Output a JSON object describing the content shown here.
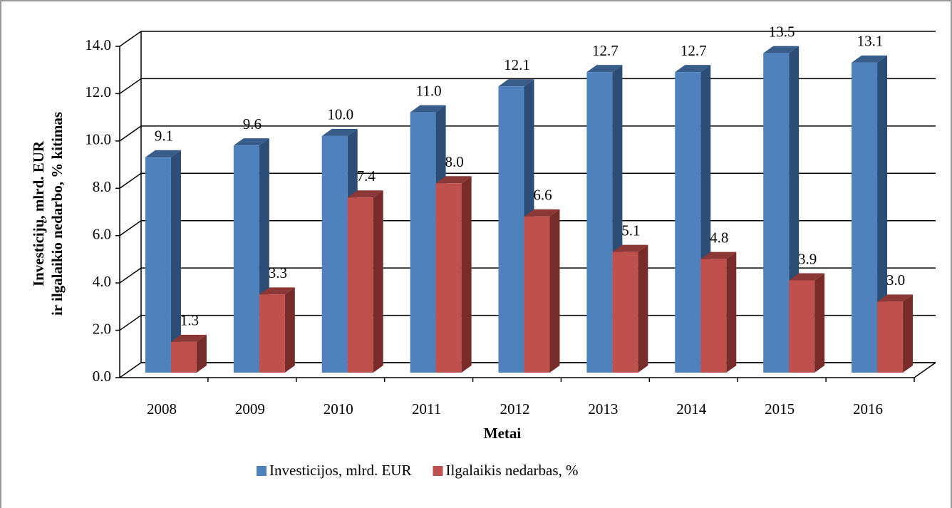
{
  "chart_data": {
    "type": "bar3d",
    "y_label": [
      "Investicijų, mlrd. EUR",
      "ir ilgalaikio nedarbo,  % kitimas"
    ],
    "x_label": "Metai",
    "categories": [
      "2008",
      "2009",
      "2010",
      "2011",
      "2012",
      "2013",
      "2014",
      "2015",
      "2016"
    ],
    "series": [
      {
        "name": "Investicijos, mlrd. EUR",
        "color": "#4f81bd",
        "side": "#2c4d75",
        "top": "#385d8a",
        "values": [
          9.1,
          9.6,
          10.0,
          11.0,
          12.1,
          12.7,
          12.7,
          13.5,
          13.1
        ],
        "value_labels": [
          "9.1",
          "9.6",
          "10.0",
          "11.0",
          "12.1",
          "12.7",
          "12.7",
          "13.5",
          "13.1"
        ]
      },
      {
        "name": "Ilgalaikis nedarbas, %",
        "color": "#c0504d",
        "side": "#772c2a",
        "top": "#8c3836",
        "values": [
          1.3,
          3.3,
          7.4,
          8.0,
          6.6,
          5.1,
          4.8,
          3.9,
          3.0
        ],
        "value_labels": [
          "1.3",
          "3.3",
          "7.4",
          "8.0",
          "6.6",
          "5.1",
          "4.8",
          "3.9",
          "3.0"
        ]
      }
    ],
    "ylim": [
      0,
      14
    ],
    "yticks": [
      {
        "value": 0,
        "label": "0.0"
      },
      {
        "value": 2,
        "label": "2.0"
      },
      {
        "value": 4,
        "label": "4.0"
      },
      {
        "value": 6,
        "label": "6.0"
      },
      {
        "value": 8,
        "label": "8.0"
      },
      {
        "value": 10,
        "label": "10.0"
      },
      {
        "value": 12,
        "label": "12.0"
      },
      {
        "value": 14,
        "label": "14.0"
      }
    ],
    "grid": true,
    "legend": "bottom"
  }
}
